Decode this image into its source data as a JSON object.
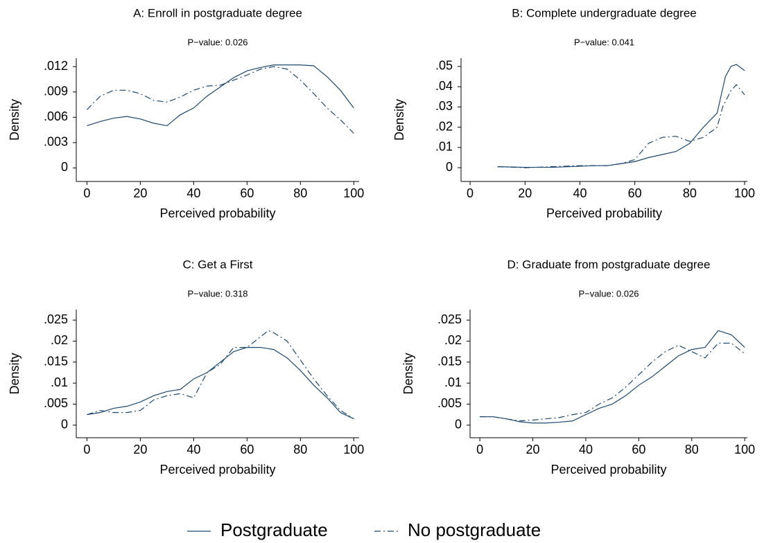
{
  "chart_data": [
    {
      "type": "line",
      "title": "A: Enroll in postgraduate degree",
      "subtitle": "P−value:  0.026",
      "x_label": "Perceived probability",
      "y_label": "Density",
      "xlim": [
        -4,
        102
      ],
      "ylim": [
        -0.0016,
        0.013
      ],
      "xticks": [
        0,
        20,
        40,
        60,
        80,
        100
      ],
      "yticks": [
        0,
        {
          "value": 0.003,
          "label": ".003"
        },
        {
          "value": 0.006,
          "label": ".006"
        },
        {
          "value": 0.009,
          "label": ".009"
        },
        {
          "value": 0.012,
          "label": ".012"
        }
      ],
      "series": [
        {
          "name": "Postgraduate",
          "color": "#1a476f",
          "line_style": "solid",
          "x": [
            0,
            5,
            10,
            15,
            20,
            25,
            30,
            35,
            40,
            45,
            50,
            55,
            60,
            65,
            70,
            75,
            80,
            85,
            90,
            95,
            100
          ],
          "values": [
            0.005,
            0.0055,
            0.0059,
            0.0061,
            0.0058,
            0.0053,
            0.005,
            0.0063,
            0.0071,
            0.0085,
            0.0096,
            0.0107,
            0.0115,
            0.0119,
            0.0122,
            0.0122,
            0.0122,
            0.0121,
            0.0108,
            0.0092,
            0.0071
          ]
        },
        {
          "name": "No postgraduate",
          "color": "#1a476f",
          "line_style": "dashed",
          "x": [
            0,
            5,
            10,
            15,
            20,
            25,
            30,
            35,
            40,
            45,
            50,
            55,
            60,
            65,
            70,
            75,
            80,
            85,
            90,
            95,
            100
          ],
          "values": [
            0.0069,
            0.0085,
            0.0092,
            0.0092,
            0.0088,
            0.008,
            0.0078,
            0.0084,
            0.0092,
            0.0097,
            0.0098,
            0.0104,
            0.011,
            0.0117,
            0.012,
            0.0117,
            0.0104,
            0.0088,
            0.0071,
            0.0057,
            0.0041
          ]
        }
      ]
    },
    {
      "type": "line",
      "title": "B: Complete undergraduate degree",
      "subtitle": "P−value:  0.041",
      "x_label": "Perceived probability",
      "y_label": "Density",
      "xlim": [
        -3.3,
        101
      ],
      "ylim": [
        -0.0068,
        0.0541
      ],
      "xticks": [
        0,
        20,
        40,
        60,
        80,
        100
      ],
      "yticks": [
        0,
        {
          "value": 0.01,
          "label": ".01"
        },
        {
          "value": 0.02,
          "label": ".02"
        },
        {
          "value": 0.03,
          "label": ".03"
        },
        {
          "value": 0.04,
          "label": ".04"
        },
        {
          "value": 0.05,
          "label": ".05"
        }
      ],
      "series": [
        {
          "name": "Postgraduate",
          "color": "#1a476f",
          "line_style": "solid",
          "x": [
            10,
            20,
            30,
            40,
            45,
            50,
            55,
            60,
            65,
            70,
            75,
            80,
            85,
            90,
            93,
            95,
            97,
            100
          ],
          "values": [
            0.0005,
            0.0002,
            0.0002,
            0.0007,
            0.001,
            0.001,
            0.002,
            0.003,
            0.005,
            0.0065,
            0.008,
            0.012,
            0.02,
            0.027,
            0.045,
            0.05,
            0.051,
            0.048
          ]
        },
        {
          "name": "No postgraduate",
          "color": "#1a476f",
          "line_style": "dashed",
          "x": [
            10,
            20,
            30,
            40,
            50,
            55,
            60,
            65,
            70,
            75,
            80,
            85,
            90,
            92,
            95,
            97,
            100
          ],
          "values": [
            0.0005,
            0.0,
            0.0005,
            0.001,
            0.001,
            0.002,
            0.004,
            0.012,
            0.015,
            0.0155,
            0.013,
            0.015,
            0.02,
            0.03,
            0.038,
            0.041,
            0.036
          ]
        }
      ]
    },
    {
      "type": "line",
      "title": "C: Get a First",
      "subtitle": "P−value:  0.318",
      "x_label": "Perceived probability",
      "y_label": "Density",
      "xlim": [
        -4,
        102
      ],
      "ylim": [
        -0.003,
        0.0275
      ],
      "xticks": [
        0,
        20,
        40,
        60,
        80,
        100
      ],
      "yticks": [
        0,
        {
          "value": 0.005,
          "label": ".005"
        },
        {
          "value": 0.01,
          "label": ".01"
        },
        {
          "value": 0.015,
          "label": ".015"
        },
        {
          "value": 0.02,
          "label": ".02"
        },
        {
          "value": 0.025,
          "label": ".025"
        }
      ],
      "series": [
        {
          "name": "Postgraduate",
          "color": "#1a476f",
          "line_style": "solid",
          "x": [
            0,
            5,
            10,
            15,
            20,
            25,
            30,
            35,
            40,
            45,
            50,
            55,
            60,
            65,
            70,
            75,
            80,
            85,
            90,
            95,
            100
          ],
          "values": [
            0.0025,
            0.003,
            0.004,
            0.0045,
            0.0055,
            0.007,
            0.008,
            0.0085,
            0.011,
            0.0125,
            0.015,
            0.0175,
            0.0185,
            0.0185,
            0.018,
            0.016,
            0.013,
            0.0095,
            0.0065,
            0.003,
            0.0015
          ]
        },
        {
          "name": "No postgraduate",
          "color": "#1a476f",
          "line_style": "dashed",
          "x": [
            0,
            5,
            10,
            15,
            20,
            25,
            30,
            35,
            40,
            45,
            50,
            55,
            60,
            65,
            68,
            70,
            75,
            80,
            85,
            90,
            95,
            100
          ],
          "values": [
            0.0025,
            0.0035,
            0.003,
            0.003,
            0.0035,
            0.006,
            0.007,
            0.0075,
            0.0065,
            0.0125,
            0.0145,
            0.0185,
            0.0185,
            0.021,
            0.0225,
            0.022,
            0.02,
            0.0155,
            0.011,
            0.007,
            0.0035,
            0.0015
          ]
        }
      ]
    },
    {
      "type": "line",
      "title": "D: Graduate from postgraduate degree",
      "subtitle": "P−value:  0.026",
      "x_label": "Perceived probability",
      "y_label": "Density",
      "xlim": [
        -3.7,
        101
      ],
      "ylim": [
        -0.003,
        0.0275
      ],
      "xticks": [
        0,
        20,
        40,
        60,
        80,
        100
      ],
      "yticks": [
        0,
        {
          "value": 0.005,
          "label": ".005"
        },
        {
          "value": 0.01,
          "label": ".01"
        },
        {
          "value": 0.015,
          "label": ".015"
        },
        {
          "value": 0.02,
          "label": ".02"
        },
        {
          "value": 0.025,
          "label": ".025"
        }
      ],
      "series": [
        {
          "name": "Postgraduate",
          "color": "#1a476f",
          "line_style": "solid",
          "x": [
            0,
            5,
            10,
            15,
            20,
            25,
            30,
            35,
            40,
            45,
            50,
            55,
            60,
            65,
            70,
            75,
            80,
            85,
            90,
            95,
            100
          ],
          "values": [
            0.002,
            0.002,
            0.0015,
            0.0008,
            0.0005,
            0.0005,
            0.0007,
            0.001,
            0.0025,
            0.004,
            0.005,
            0.007,
            0.0095,
            0.0115,
            0.014,
            0.0165,
            0.018,
            0.0185,
            0.0225,
            0.0215,
            0.0185
          ]
        },
        {
          "name": "No postgraduate",
          "color": "#1a476f",
          "line_style": "dashed",
          "x": [
            0,
            5,
            10,
            15,
            20,
            25,
            30,
            35,
            40,
            45,
            50,
            55,
            60,
            65,
            70,
            75,
            80,
            85,
            90,
            95,
            100
          ],
          "values": [
            0.002,
            0.002,
            0.0015,
            0.001,
            0.0012,
            0.0015,
            0.0018,
            0.0025,
            0.003,
            0.005,
            0.0065,
            0.009,
            0.012,
            0.015,
            0.0175,
            0.019,
            0.0175,
            0.016,
            0.0195,
            0.0195,
            0.017
          ]
        }
      ]
    }
  ]
}
